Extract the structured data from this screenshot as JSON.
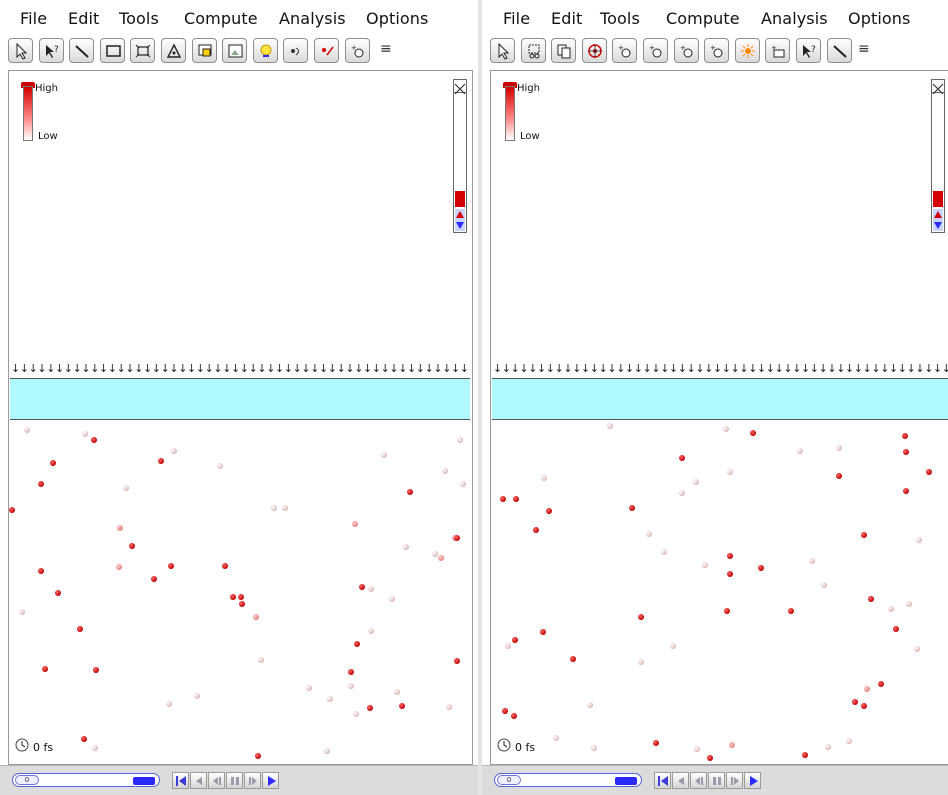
{
  "menus": [
    "File",
    "Edit",
    "Tools",
    "Compute",
    "Analysis",
    "Options"
  ],
  "legend": {
    "high": "High",
    "low": "Low"
  },
  "left_pane": {
    "toolbar": [
      "select-arrow-icon",
      "help-pointer-icon",
      "bond-tool-icon",
      "rectangle-tool-icon",
      "rectangle-arrows-icon",
      "triangle-tool-icon",
      "monitor-tool-icon",
      "image-tool-icon",
      "heat-source-icon",
      "particle-add-icon",
      "particle-remove-icon",
      "particle-attach-icon"
    ],
    "time": "0 fs",
    "slider_value": "0"
  },
  "right_pane": {
    "toolbar": [
      "select-arrow-icon",
      "cut-tool-icon",
      "copy-tool-icon",
      "target-tool-icon",
      "add-particle-1-icon",
      "add-particle-2-icon",
      "add-particle-3-icon",
      "add-particle-4-icon",
      "light-source-icon",
      "container-tool-icon",
      "help-pointer-icon",
      "bond-tool-icon"
    ],
    "time": "0 fs",
    "slider_value": "0"
  },
  "colors": {
    "hot": "#c00000",
    "warm": "#e78080",
    "cool": "#d8b0b0",
    "band": "#aef9fd",
    "slider": "#2b2bff"
  }
}
